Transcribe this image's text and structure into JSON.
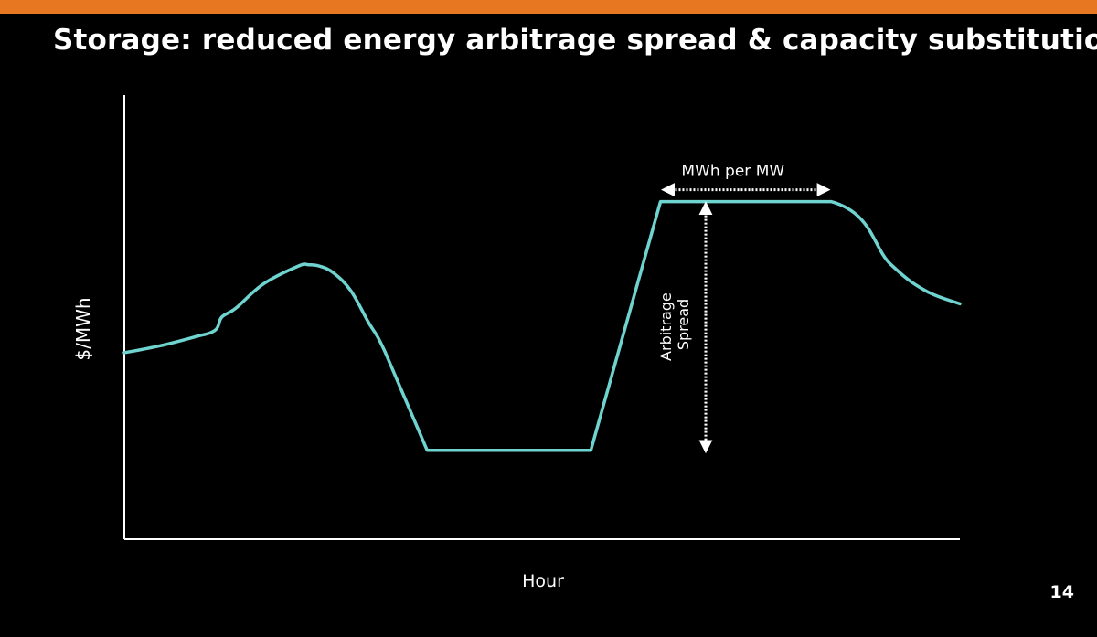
{
  "slide": {
    "title": "Storage: reduced energy arbitrage spread & capacity substitution",
    "page_number": "14"
  },
  "colors": {
    "top_bar": "#e87722",
    "background": "#000000",
    "price_line": "#6fd3cf",
    "text": "#ffffff"
  },
  "chart_data": {
    "type": "line",
    "xlabel": "Hour",
    "ylabel": "$/MWh",
    "xlim": [
      0,
      24
    ],
    "ylim": [
      0,
      100
    ],
    "grid": false,
    "series": [
      {
        "x": [
          0,
          1,
          2,
          2.6,
          2.8,
          3.2,
          4,
          5,
          5.3,
          5.6,
          6,
          6.5,
          7,
          7.5,
          8.7,
          13.4,
          15.4,
          20.3,
          22,
          23,
          24
        ],
        "values": [
          42,
          43.5,
          45.5,
          47,
          50,
          52,
          57.5,
          61.5,
          61.8,
          61.5,
          60,
          56,
          49,
          42,
          20,
          20,
          76,
          76,
          62,
          56,
          53
        ]
      }
    ],
    "annotations": {
      "duration_label": "MWh per MW",
      "spread_label_line1": "Arbitrage",
      "spread_label_line2": "Spread",
      "duration_x_range": [
        15.4,
        20.3
      ],
      "spread_x": 16.7,
      "spread_y_range": [
        20,
        76
      ]
    }
  }
}
